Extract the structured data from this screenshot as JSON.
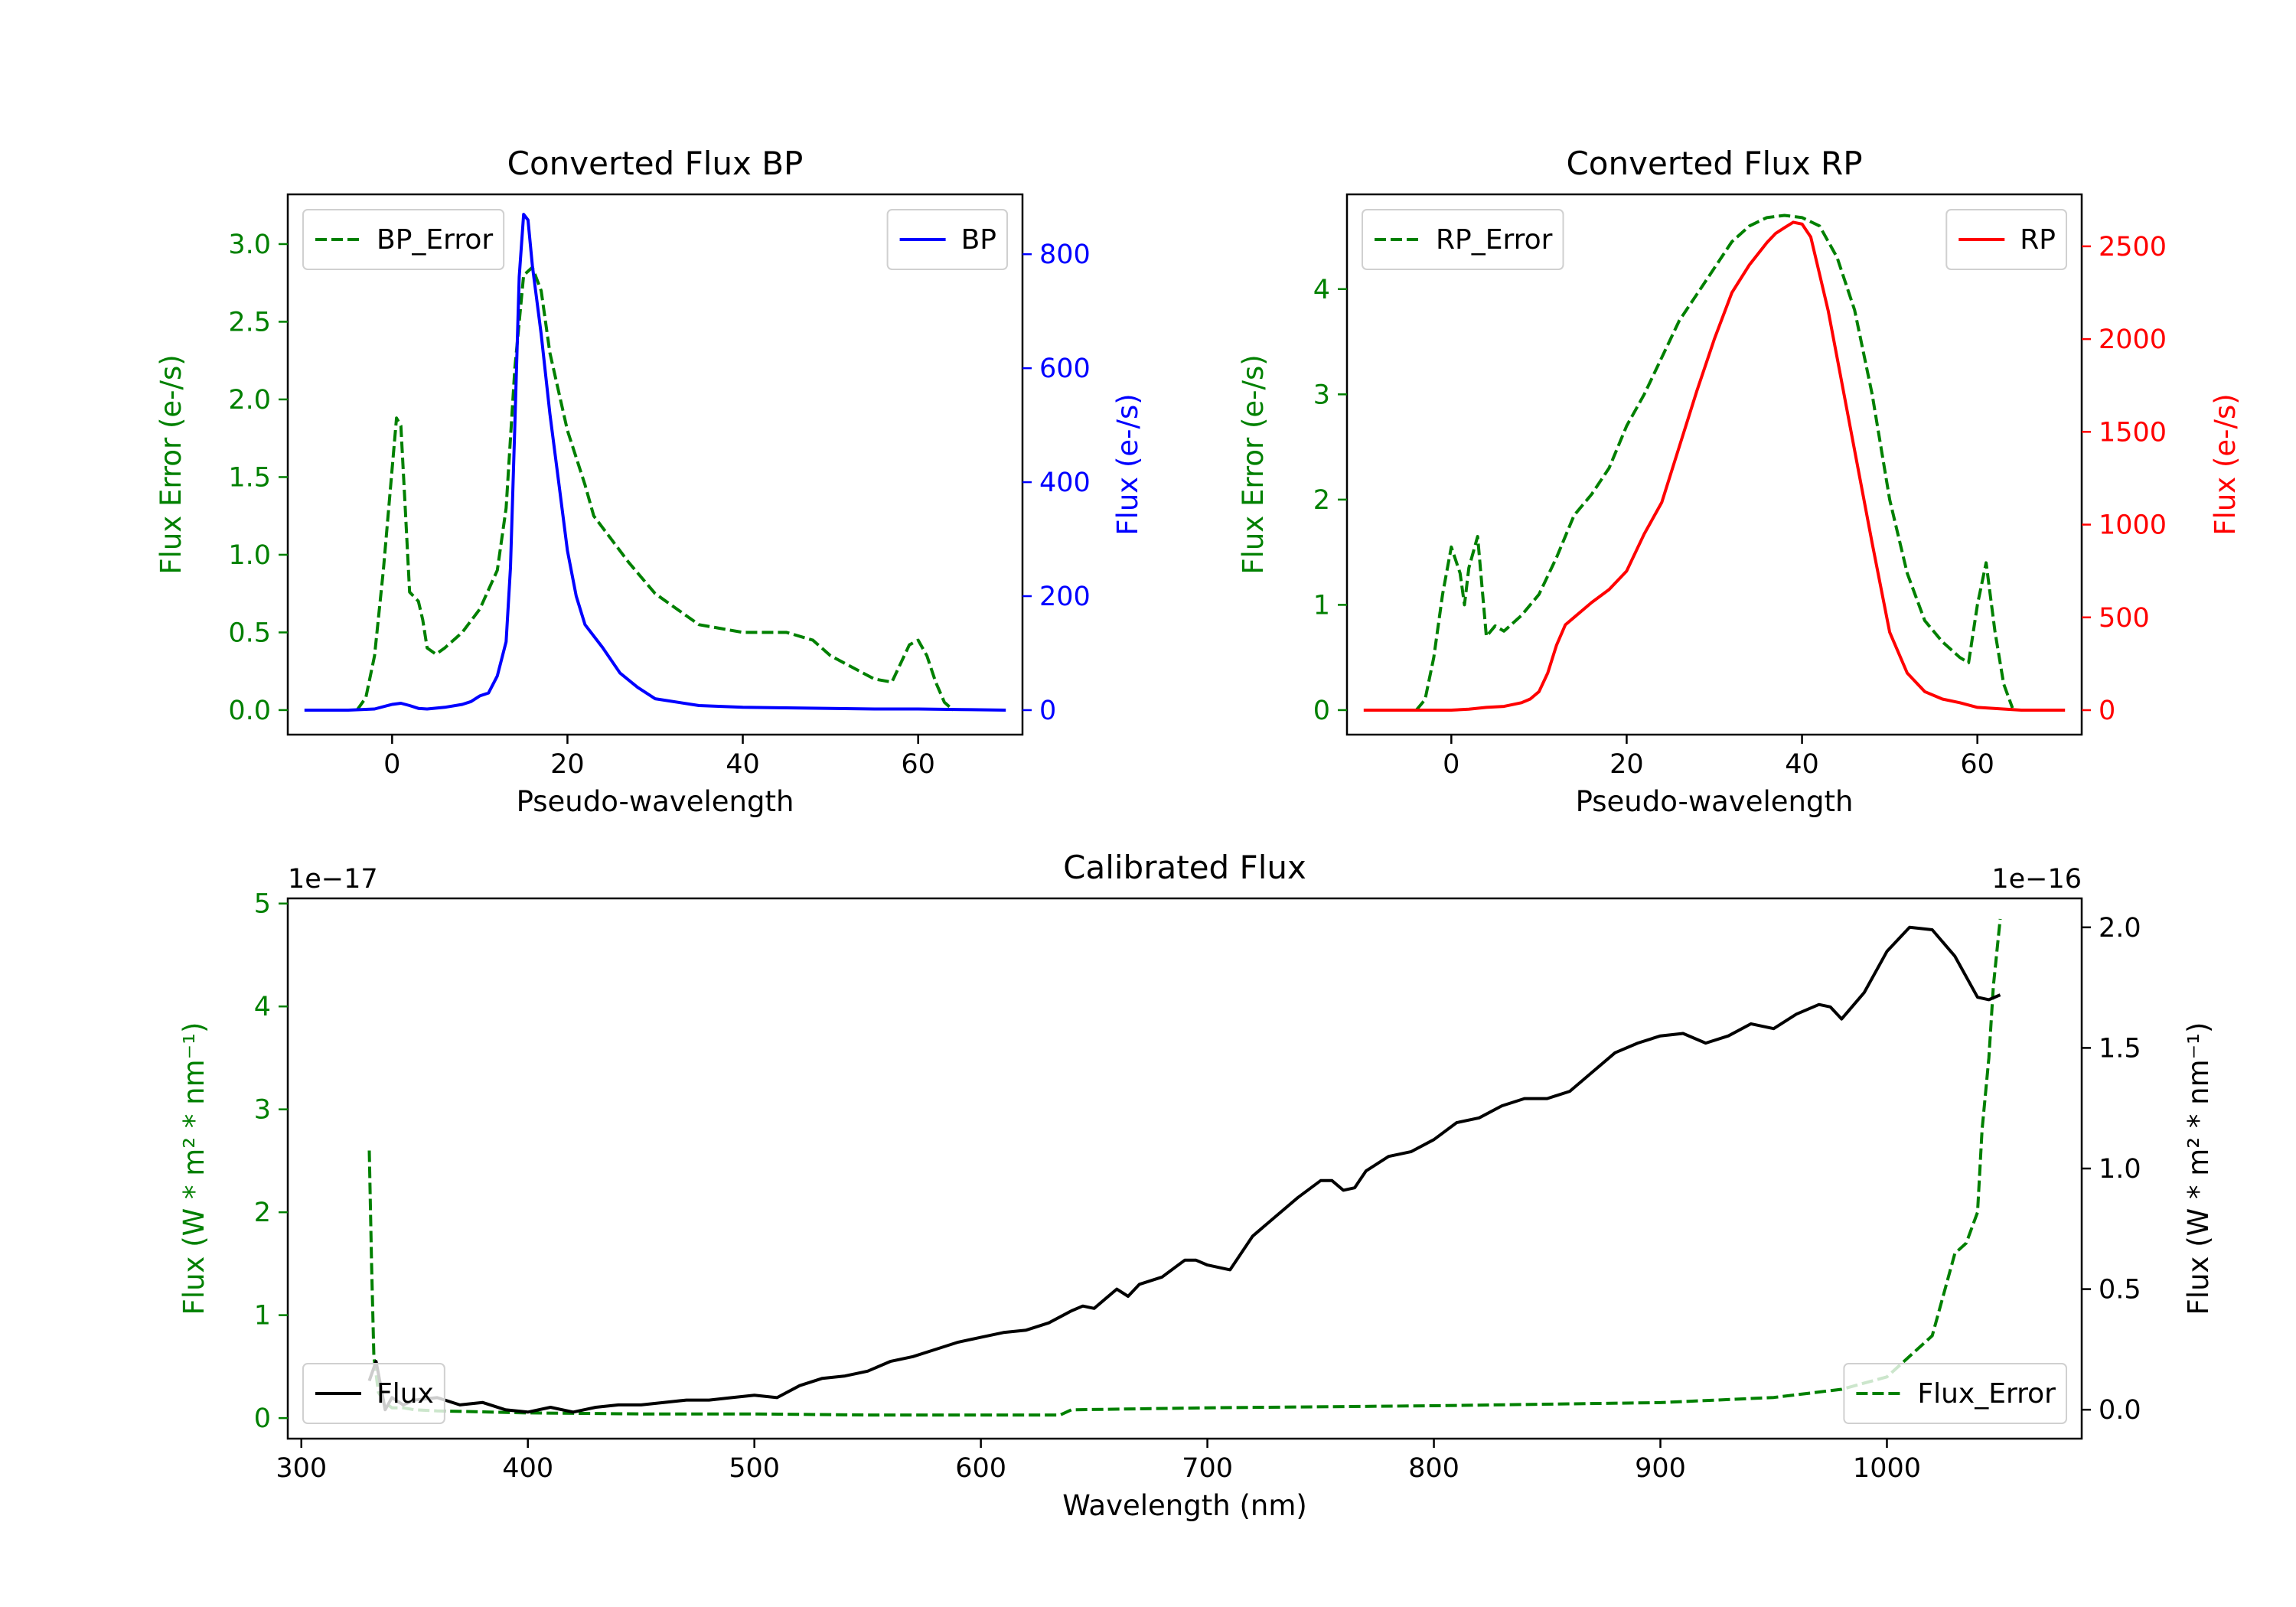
{
  "colors": {
    "green": "#008000",
    "blue": "#0000ff",
    "red": "#ff0000",
    "black": "#000000"
  },
  "chart_data": [
    {
      "id": "bp",
      "type": "line",
      "title": "Converted Flux BP",
      "xlabel": "Pseudo-wavelength",
      "ylabel_left": "Flux Error (e-/s)",
      "ylabel_right": "Flux (e-/s)",
      "xlim": [
        -11.9,
        71.9
      ],
      "ylim_left": [
        -0.158,
        3.32
      ],
      "ylim_right": [
        -43,
        905
      ],
      "xticks": [
        0,
        20,
        40,
        60
      ],
      "xtick_labels": [
        "0",
        "20",
        "40",
        "60"
      ],
      "yticks_left": [
        0.0,
        0.5,
        1.0,
        1.5,
        2.0,
        2.5,
        3.0
      ],
      "ytick_labels_left": [
        "0.0",
        "0.5",
        "1.0",
        "1.5",
        "2.0",
        "2.5",
        "3.0"
      ],
      "yticks_right": [
        0,
        200,
        400,
        600,
        800
      ],
      "ytick_labels_right": [
        "0",
        "200",
        "400",
        "600",
        "800"
      ],
      "legend_left": {
        "label": "BP_Error",
        "position": "top-left"
      },
      "legend_right": {
        "label": "BP",
        "position": "top-right"
      },
      "series": [
        {
          "name": "BP_Error",
          "axis": "left",
          "color": "green",
          "style": "dashed",
          "x": [
            -4,
            -3,
            -2,
            -1,
            0,
            0.5,
            1,
            1.5,
            2,
            3,
            3.5,
            4,
            5,
            6,
            8,
            10,
            12,
            13,
            14,
            15,
            16,
            17,
            18,
            20,
            22,
            23,
            25,
            27,
            30,
            35,
            40,
            45,
            48,
            50,
            55,
            57,
            59,
            60,
            61,
            62,
            63,
            64
          ],
          "values": [
            0.0,
            0.08,
            0.35,
            0.9,
            1.55,
            1.88,
            1.83,
            1.3,
            0.76,
            0.7,
            0.58,
            0.4,
            0.36,
            0.4,
            0.5,
            0.65,
            0.9,
            1.3,
            2.2,
            2.8,
            2.85,
            2.7,
            2.3,
            1.8,
            1.45,
            1.25,
            1.1,
            0.95,
            0.75,
            0.55,
            0.5,
            0.5,
            0.45,
            0.35,
            0.2,
            0.18,
            0.42,
            0.45,
            0.35,
            0.18,
            0.05,
            0.0
          ]
        },
        {
          "name": "BP",
          "axis": "right",
          "color": "blue",
          "style": "solid",
          "x": [
            -10,
            -5,
            -2,
            0,
            1,
            2,
            3,
            4,
            6,
            8,
            9,
            10,
            11,
            12,
            13,
            13.5,
            14,
            14.5,
            15,
            15.5,
            16,
            17,
            18,
            19,
            20,
            21,
            22,
            24,
            26,
            28,
            30,
            35,
            40,
            45,
            50,
            55,
            60,
            65,
            70
          ],
          "values": [
            0,
            0,
            2,
            10,
            12,
            8,
            3,
            2,
            5,
            10,
            15,
            25,
            30,
            60,
            120,
            250,
            500,
            760,
            870,
            860,
            780,
            660,
            520,
            400,
            280,
            200,
            150,
            110,
            65,
            40,
            20,
            8,
            5,
            4,
            3,
            2,
            2,
            1,
            0
          ]
        }
      ]
    },
    {
      "id": "rp",
      "type": "line",
      "title": "Converted Flux RP",
      "xlabel": "Pseudo-wavelength",
      "ylabel_left": "Flux Error (e-/s)",
      "ylabel_right": "Flux (e-/s)",
      "xlim": [
        -11.9,
        71.9
      ],
      "ylim_left": [
        -0.233,
        4.9
      ],
      "ylim_right": [
        -132,
        2780
      ],
      "xticks": [
        0,
        20,
        40,
        60
      ],
      "xtick_labels": [
        "0",
        "20",
        "40",
        "60"
      ],
      "yticks_left": [
        0,
        1,
        2,
        3,
        4
      ],
      "ytick_labels_left": [
        "0",
        "1",
        "2",
        "3",
        "4"
      ],
      "yticks_right": [
        0,
        500,
        1000,
        1500,
        2000,
        2500
      ],
      "ytick_labels_right": [
        "0",
        "500",
        "1000",
        "1500",
        "2000",
        "2500"
      ],
      "legend_left": {
        "label": "RP_Error",
        "position": "top-left"
      },
      "legend_right": {
        "label": "RP",
        "position": "top-right"
      },
      "series": [
        {
          "name": "RP_Error",
          "axis": "left",
          "color": "green",
          "style": "dashed",
          "x": [
            -4,
            -3,
            -2,
            -1,
            0,
            1,
            1.5,
            2,
            3,
            4,
            5,
            6,
            8,
            10,
            12,
            14,
            16,
            18,
            20,
            22,
            24,
            26,
            28,
            30,
            32,
            34,
            36,
            38,
            40,
            42,
            44,
            46,
            48,
            50,
            52,
            54,
            56,
            58,
            59,
            60,
            61,
            62,
            63,
            64
          ],
          "values": [
            0,
            0.1,
            0.5,
            1.1,
            1.55,
            1.3,
            1.0,
            1.35,
            1.65,
            0.7,
            0.8,
            0.75,
            0.9,
            1.1,
            1.45,
            1.85,
            2.05,
            2.3,
            2.7,
            3.0,
            3.35,
            3.7,
            3.95,
            4.2,
            4.45,
            4.6,
            4.68,
            4.7,
            4.68,
            4.6,
            4.3,
            3.8,
            3.0,
            2.0,
            1.3,
            0.85,
            0.65,
            0.5,
            0.45,
            1.0,
            1.4,
            0.75,
            0.25,
            0.02
          ]
        },
        {
          "name": "RP",
          "axis": "right",
          "color": "red",
          "style": "solid",
          "x": [
            -10,
            -5,
            0,
            2,
            4,
            6,
            8,
            9,
            10,
            11,
            12,
            13,
            14,
            16,
            18,
            20,
            22,
            24,
            26,
            28,
            30,
            32,
            34,
            36,
            37,
            38,
            39,
            40,
            41,
            42,
            43,
            44,
            46,
            48,
            50,
            52,
            54,
            56,
            58,
            60,
            65,
            70
          ],
          "values": [
            0,
            0,
            0,
            5,
            15,
            20,
            40,
            60,
            100,
            200,
            350,
            460,
            500,
            580,
            650,
            750,
            950,
            1120,
            1420,
            1720,
            2000,
            2250,
            2400,
            2520,
            2570,
            2600,
            2630,
            2620,
            2550,
            2350,
            2150,
            1900,
            1400,
            900,
            420,
            200,
            100,
            60,
            40,
            15,
            0,
            0
          ]
        }
      ]
    },
    {
      "id": "cal",
      "type": "line",
      "title": "Calibrated Flux",
      "xlabel": "Wavelength (nm)",
      "ylabel_left": "Flux (W * m² * nm⁻¹)",
      "ylabel_right": "Flux (W * m² * nm⁻¹)",
      "left_offset_text": "1e−17",
      "right_offset_text": "1e−16",
      "xlim": [
        294,
        1086
      ],
      "ylim_left": [
        -0.2,
        5.05
      ],
      "ylim_right": [
        -0.12,
        2.12
      ],
      "xticks": [
        300,
        400,
        500,
        600,
        700,
        800,
        900,
        1000
      ],
      "xtick_labels": [
        "300",
        "400",
        "500",
        "600",
        "700",
        "800",
        "900",
        "1000"
      ],
      "yticks_left": [
        0,
        1,
        2,
        3,
        4,
        5
      ],
      "ytick_labels_left": [
        "0",
        "1",
        "2",
        "3",
        "4",
        "5"
      ],
      "yticks_right": [
        0.0,
        0.5,
        1.0,
        1.5,
        2.0
      ],
      "ytick_labels_right": [
        "0.0",
        "0.5",
        "1.0",
        "1.5",
        "2.0"
      ],
      "legend_left": {
        "label": "Flux",
        "position": "bottom-left"
      },
      "legend_right": {
        "label": "Flux_Error",
        "position": "bottom-right"
      },
      "series": [
        {
          "name": "Flux_Error",
          "axis": "left",
          "color": "green",
          "style": "dashed",
          "x": [
            330,
            331,
            332,
            334,
            337,
            340,
            345,
            350,
            360,
            380,
            400,
            450,
            500,
            550,
            600,
            635,
            640,
            700,
            800,
            900,
            950,
            980,
            1000,
            1010,
            1020,
            1025,
            1030,
            1035,
            1040,
            1042,
            1045,
            1047,
            1050
          ],
          "values": [
            2.6,
            1.5,
            0.6,
            0.25,
            0.15,
            0.1,
            0.1,
            0.08,
            0.07,
            0.06,
            0.05,
            0.04,
            0.04,
            0.03,
            0.03,
            0.03,
            0.08,
            0.1,
            0.12,
            0.15,
            0.2,
            0.28,
            0.4,
            0.6,
            0.8,
            1.2,
            1.6,
            1.7,
            2.0,
            2.8,
            3.5,
            4.2,
            4.85
          ]
        },
        {
          "name": "Flux",
          "axis": "right",
          "color": "black",
          "style": "solid",
          "x": [
            330,
            333,
            337,
            340,
            345,
            350,
            360,
            370,
            380,
            390,
            400,
            410,
            420,
            430,
            440,
            450,
            460,
            470,
            480,
            490,
            500,
            510,
            520,
            530,
            540,
            550,
            560,
            570,
            580,
            590,
            600,
            610,
            620,
            630,
            640,
            645,
            650,
            655,
            660,
            665,
            670,
            680,
            690,
            695,
            700,
            710,
            720,
            730,
            740,
            750,
            755,
            760,
            765,
            770,
            780,
            790,
            800,
            810,
            820,
            830,
            840,
            850,
            860,
            870,
            880,
            890,
            900,
            910,
            920,
            930,
            940,
            950,
            960,
            970,
            975,
            980,
            990,
            1000,
            1010,
            1020,
            1030,
            1040,
            1045,
            1050
          ],
          "values": [
            0.12,
            0.2,
            0.0,
            0.05,
            0.02,
            0.04,
            0.05,
            0.02,
            0.03,
            0.0,
            -0.01,
            0.01,
            -0.01,
            0.01,
            0.02,
            0.02,
            0.03,
            0.04,
            0.04,
            0.05,
            0.06,
            0.05,
            0.1,
            0.13,
            0.14,
            0.16,
            0.2,
            0.22,
            0.25,
            0.28,
            0.3,
            0.32,
            0.33,
            0.36,
            0.41,
            0.43,
            0.42,
            0.46,
            0.5,
            0.47,
            0.52,
            0.55,
            0.62,
            0.62,
            0.6,
            0.58,
            0.72,
            0.8,
            0.88,
            0.95,
            0.95,
            0.91,
            0.92,
            0.99,
            1.05,
            1.07,
            1.12,
            1.19,
            1.21,
            1.26,
            1.29,
            1.29,
            1.32,
            1.4,
            1.48,
            1.52,
            1.55,
            1.56,
            1.52,
            1.55,
            1.6,
            1.58,
            1.64,
            1.68,
            1.67,
            1.62,
            1.73,
            1.9,
            2.0,
            1.99,
            1.88,
            1.71,
            1.7,
            1.72
          ]
        }
      ]
    }
  ]
}
